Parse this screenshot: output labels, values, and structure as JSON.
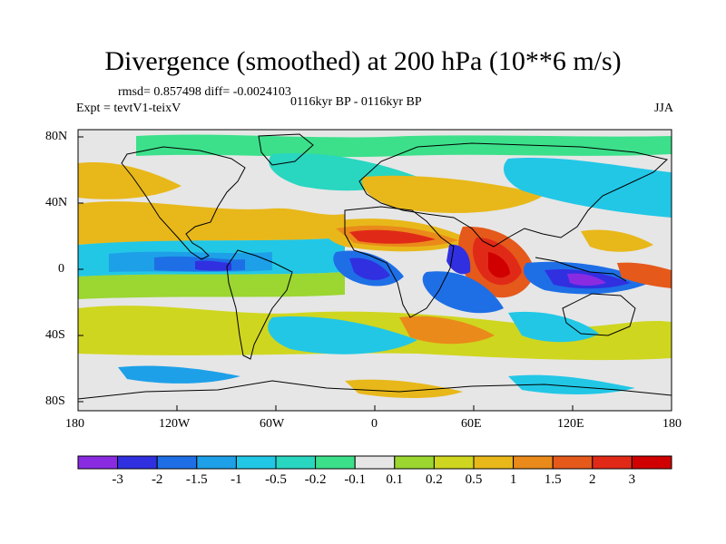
{
  "title": "Divergence (smoothed) at 200 hPa (10**6 m/s)",
  "stats_line": "rmsd= 0.857498 diff= -0.0024103",
  "experiment": "Expt = tevtV1-teixV",
  "period": "0116kyr BP - 0116kyr BP",
  "season": "JJA",
  "axes": {
    "x_ticks": [
      "180",
      "120W",
      "60W",
      "0",
      "60E",
      "120E",
      "180"
    ],
    "y_ticks": [
      "80N",
      "40N",
      "0",
      "40S",
      "80S"
    ]
  },
  "colorbar": {
    "labels": [
      "-3",
      "-2",
      "-1.5",
      "-1",
      "-0.5",
      "-0.2",
      "-0.1",
      "0.1",
      "0.2",
      "0.5",
      "1",
      "1.5",
      "2",
      "3"
    ],
    "colors": [
      "#8a2be2",
      "#3030e0",
      "#1e6fe6",
      "#1da0e8",
      "#22c7e6",
      "#29d6c0",
      "#3ce08a",
      "#e6e6e6",
      "#9bd631",
      "#cfd61f",
      "#e8b81a",
      "#ea8a1a",
      "#e5591b",
      "#e02a17",
      "#d00000"
    ]
  },
  "colors": {
    "land_outline": "#000000",
    "neutral": "#e6e6e6"
  }
}
